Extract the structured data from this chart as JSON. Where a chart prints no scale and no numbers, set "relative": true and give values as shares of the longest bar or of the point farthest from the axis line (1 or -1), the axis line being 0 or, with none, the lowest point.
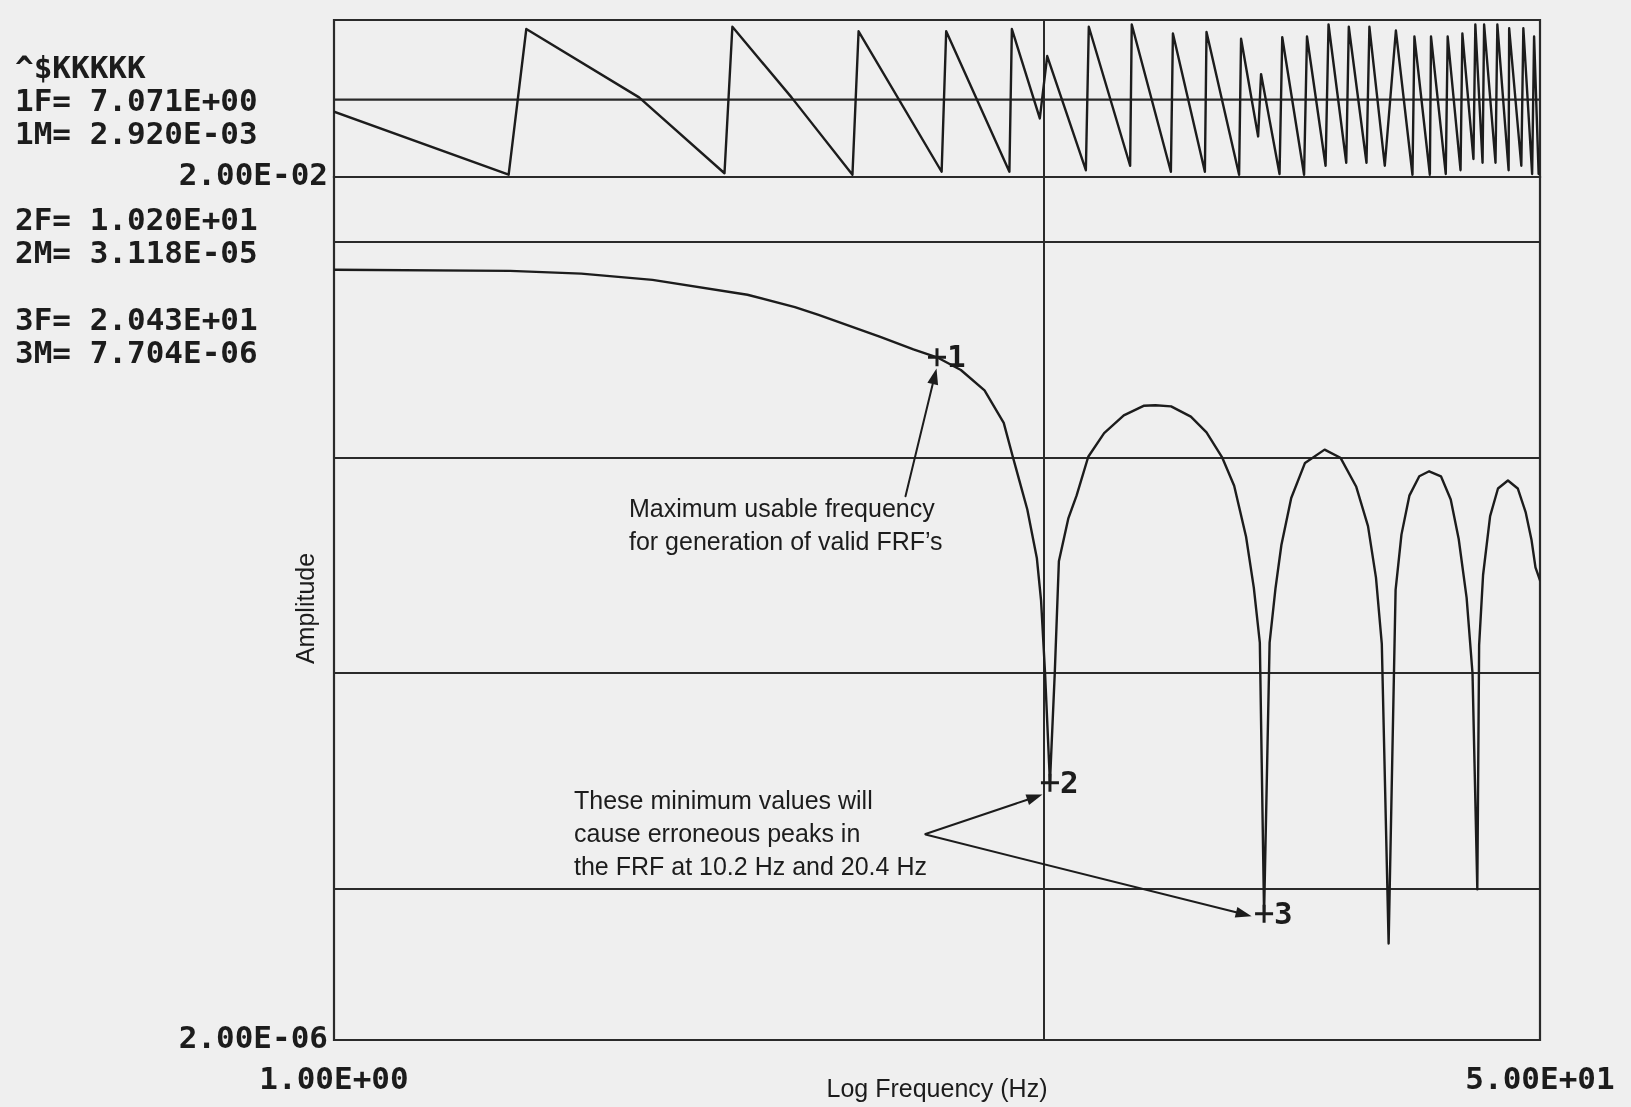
{
  "chart_data": [
    {
      "type": "line",
      "relative": true,
      "color": "#1c1c1c",
      "x": [
        1.0,
        1.762,
        1.866,
        2.69,
        3.549,
        3.641,
        4.411,
        5.375,
        5.483,
        7.178,
        7.285,
        8.943,
        9.015,
        9.87,
        10.11,
        11.46,
        11.57,
        13.23,
        13.3,
        15.1,
        15.2,
        16.86,
        16.95,
        18.84,
        18.96,
        20.04,
        20.23,
        21.48,
        21.67,
        23.26,
        23.48,
        24.94,
        25.18,
        26.67,
        26.89,
        28.48,
        28.75,
        30.22,
        31.33,
        33.06,
        33.27,
        34.98,
        35.11,
        36.83,
        37.06,
        38.64,
        38.87,
        40.29,
        40.54,
        41.5,
        41.71,
        43.28,
        43.54,
        45.16,
        45.24,
        47.06,
        47.37,
        48.74,
        49.05,
        49.78
      ],
      "values": [
        -0.16,
        -1.0,
        0.94,
        0.03,
        -0.98,
        0.97,
        0.03,
        -1.0,
        0.91,
        -0.96,
        0.91,
        -0.96,
        0.94,
        -0.25,
        0.58,
        -0.94,
        0.97,
        -0.88,
        1.0,
        -0.96,
        0.88,
        -0.96,
        0.9,
        -1.0,
        0.81,
        -0.49,
        0.34,
        -0.99,
        0.83,
        -1.0,
        0.84,
        -0.88,
        1.0,
        -0.84,
        0.97,
        -0.84,
        0.97,
        -0.88,
        0.92,
        -1.0,
        0.84,
        -1.0,
        0.84,
        -0.99,
        0.84,
        -0.94,
        0.88,
        -0.79,
        1.0,
        -0.84,
        1.0,
        -0.84,
        1.0,
        -0.94,
        0.95,
        -0.88,
        0.95,
        -0.99,
        0.84,
        -0.99
      ],
      "xlim": [
        1,
        50
      ],
      "xticks": [
        1,
        10,
        50
      ],
      "log": "x",
      "grid": "x",
      "tick_labels": false
    },
    {
      "type": "line",
      "xlabel": "Log Frequency (Hz)",
      "ylabel": "Amplitude",
      "series": [
        {
          "color": "#1c1c1c",
          "x": [
            1.0,
            1.771,
            2.23,
            2.81,
            3.823,
            4.46,
            4.815,
            5.883,
            6.55,
            7.071,
            7.64,
            8.25,
            8.78,
            9.05,
            9.478,
            9.775,
            9.91,
            10.04,
            10.2,
            10.36,
            10.5,
            10.83,
            11.12,
            11.55,
            12.16,
            12.96,
            13.82,
            14.36,
            15.11,
            16.11,
            16.95,
            17.84,
            18.54,
            19.27,
            19.76,
            20.15,
            20.43,
            20.8,
            21.2,
            21.61,
            22.31,
            23.33,
            24.86,
            26.17,
            27.55,
            28.62,
            29.37,
            29.93,
            30.6,
            31.3,
            31.9,
            32.73,
            33.8,
            34.9,
            36.26,
            37.43,
            38.41,
            39.41,
            40.17,
            40.8,
            41.04,
            41.57,
            42.53,
            43.63,
            45.06,
            46.52,
            47.72,
            48.63,
            49.27,
            50
          ],
          "values": [
            0.00743,
            0.00734,
            0.00713,
            0.00667,
            0.00569,
            0.00499,
            0.00459,
            0.00363,
            0.00318,
            0.00292,
            0.00255,
            0.00205,
            0.00145,
            0.001,
            0.000575,
            0.000343,
            0.000218,
            0.0001,
            3.118e-05,
            0.0001,
            0.000331,
            0.000525,
            0.000667,
            0.00101,
            0.0013,
            0.00157,
            0.00174,
            0.00175,
            0.00173,
            0.00155,
            0.00131,
            0.001,
            0.000742,
            0.00043,
            0.00025,
            0.000139,
            7.704e-06,
            0.000139,
            0.000248,
            0.000394,
            0.00065,
            0.000946,
            0.00109,
            0.001,
            0.000733,
            0.000482,
            0.000278,
            0.000137,
            5.6e-06,
            0.000244,
            0.00044,
            0.000667,
            0.00082,
            0.000865,
            0.00082,
            0.00064,
            0.00042,
            0.000224,
            0.0001,
            1e-05,
            0.000135,
            0.000286,
            0.000536,
            0.00072,
            0.000784,
            0.00072,
            0.00056,
            0.000418,
            0.00031,
            0.00027
          ]
        },
        {
          "type": "scatter",
          "color": "#1c1c1c",
          "marker": "cross",
          "x": [
            7.071,
            10.2,
            20.43
          ],
          "values": [
            0.00292,
            3.118e-05,
            7.704e-06
          ]
        }
      ],
      "xlim": [
        1,
        50
      ],
      "ylim": [
        2e-06,
        0.02
      ],
      "xticks": [
        {
          "value": 1,
          "label": "1.00E+00"
        },
        {
          "value": 10,
          "label": null
        },
        {
          "value": 50,
          "label": "5.00E+01"
        }
      ],
      "yticks": [
        {
          "value": 2e-06,
          "label": "2.00E-06"
        },
        {
          "value": 1e-05,
          "label": null
        },
        {
          "value": 0.0001,
          "label": null
        },
        {
          "value": 0.001,
          "label": null
        },
        {
          "value": 0.01,
          "label": null
        },
        {
          "value": 0.02,
          "label": "2.00E-02"
        }
      ],
      "log": "xy",
      "grid": true,
      "annotations": [
        "^$KKKKK",
        "1F= 7.071E+00",
        "1M= 2.920E-03",
        "2F= 1.020E+01",
        "2M= 3.118E-05",
        "3F= 2.043E+01",
        "3M= 7.704E-06",
        {
          "text": "1",
          "x": 7.071,
          "y": 0.00292
        },
        {
          "text": "2",
          "x": 10.2,
          "y": 3.118e-05
        },
        {
          "text": "3",
          "x": 20.43,
          "y": 7.704e-06
        },
        "Maximum usable frequency for generation of valid FRF’s",
        "These minimum values will cause erroneous peaks in the FRF at 10.2 Hz and 20.4 Hz"
      ]
    }
  ]
}
